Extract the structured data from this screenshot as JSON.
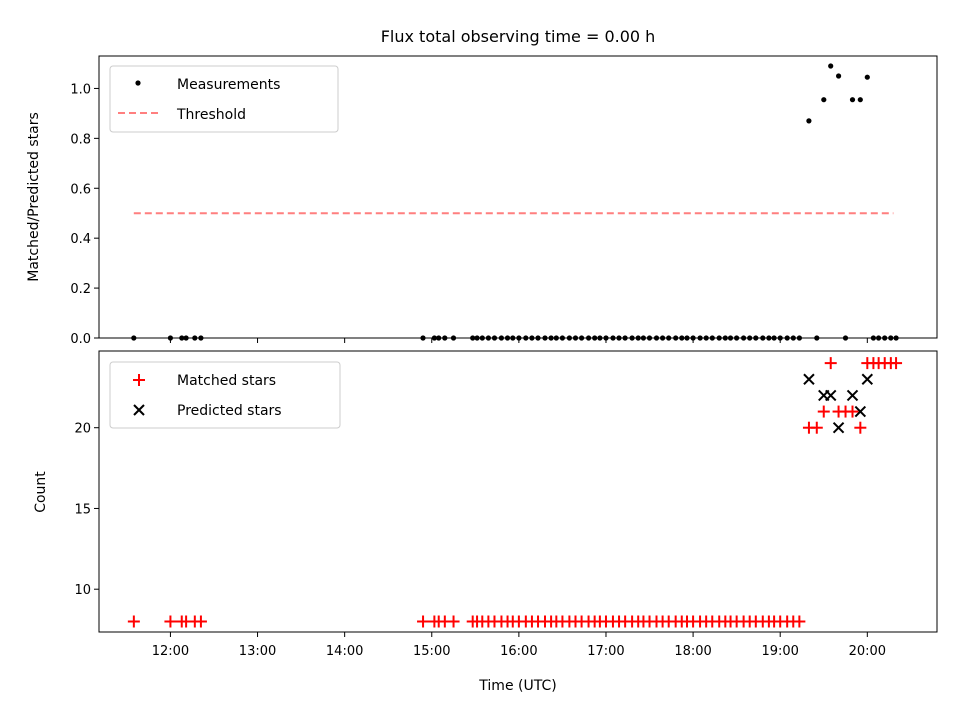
{
  "chart_data": [
    {
      "type": "scatter",
      "title": "Flux total observing time = 0.00 h",
      "xlabel": "",
      "ylabel": "Matched/Predicted stars",
      "xlim": [
        11.18,
        20.8
      ],
      "ylim": [
        0.0,
        1.13
      ],
      "yticks": [
        0.0,
        0.2,
        0.4,
        0.6,
        0.8,
        1.0
      ],
      "ytick_labels": [
        "0.0",
        "0.2",
        "0.4",
        "0.6",
        "0.8",
        "1.0"
      ],
      "legend_position": "upper-left",
      "threshold": {
        "name": "Threshold",
        "value": 0.5,
        "x_range": [
          11.58,
          20.3
        ],
        "color": "#ff7f7f"
      },
      "series": [
        {
          "name": "Measurements",
          "color": "#000000",
          "points": [
            [
              11.58,
              0
            ],
            [
              12.0,
              0
            ],
            [
              12.13,
              0
            ],
            [
              12.18,
              0
            ],
            [
              12.28,
              0
            ],
            [
              12.35,
              0
            ],
            [
              14.9,
              0
            ],
            [
              15.03,
              0
            ],
            [
              15.08,
              0
            ],
            [
              15.15,
              0
            ],
            [
              15.25,
              0
            ],
            [
              15.47,
              0
            ],
            [
              15.52,
              0
            ],
            [
              15.58,
              0
            ],
            [
              15.65,
              0
            ],
            [
              15.72,
              0
            ],
            [
              15.8,
              0
            ],
            [
              15.87,
              0
            ],
            [
              15.93,
              0
            ],
            [
              16.0,
              0
            ],
            [
              16.08,
              0
            ],
            [
              16.15,
              0
            ],
            [
              16.22,
              0
            ],
            [
              16.3,
              0
            ],
            [
              16.37,
              0
            ],
            [
              16.43,
              0
            ],
            [
              16.5,
              0
            ],
            [
              16.58,
              0
            ],
            [
              16.65,
              0
            ],
            [
              16.72,
              0
            ],
            [
              16.8,
              0
            ],
            [
              16.87,
              0
            ],
            [
              16.93,
              0
            ],
            [
              17.0,
              0
            ],
            [
              17.08,
              0
            ],
            [
              17.15,
              0
            ],
            [
              17.22,
              0
            ],
            [
              17.3,
              0
            ],
            [
              17.37,
              0
            ],
            [
              17.43,
              0
            ],
            [
              17.5,
              0
            ],
            [
              17.58,
              0
            ],
            [
              17.65,
              0
            ],
            [
              17.72,
              0
            ],
            [
              17.8,
              0
            ],
            [
              17.87,
              0
            ],
            [
              17.93,
              0
            ],
            [
              18.0,
              0
            ],
            [
              18.08,
              0
            ],
            [
              18.15,
              0
            ],
            [
              18.22,
              0
            ],
            [
              18.3,
              0
            ],
            [
              18.37,
              0
            ],
            [
              18.43,
              0
            ],
            [
              18.5,
              0
            ],
            [
              18.58,
              0
            ],
            [
              18.65,
              0
            ],
            [
              18.72,
              0
            ],
            [
              18.8,
              0
            ],
            [
              18.87,
              0
            ],
            [
              18.93,
              0
            ],
            [
              19.0,
              0
            ],
            [
              19.08,
              0
            ],
            [
              19.15,
              0
            ],
            [
              19.22,
              0
            ],
            [
              19.33,
              0.87
            ],
            [
              19.42,
              0
            ],
            [
              19.5,
              0.955
            ],
            [
              19.58,
              1.09
            ],
            [
              19.67,
              1.05
            ],
            [
              19.75,
              0
            ],
            [
              19.83,
              0.955
            ],
            [
              19.92,
              0.955
            ],
            [
              20.0,
              1.045
            ],
            [
              20.07,
              0
            ],
            [
              20.13,
              0
            ],
            [
              20.2,
              0
            ],
            [
              20.27,
              0
            ],
            [
              20.33,
              0
            ]
          ]
        }
      ]
    },
    {
      "type": "scatter",
      "title": "",
      "xlabel": "Time (UTC)",
      "ylabel": "Count",
      "xlim": [
        11.18,
        20.8
      ],
      "ylim": [
        7.35,
        24.75
      ],
      "yticks": [
        10,
        15,
        20
      ],
      "ytick_labels": [
        "10",
        "15",
        "20"
      ],
      "xticks": [
        12,
        13,
        14,
        15,
        16,
        17,
        18,
        19,
        20
      ],
      "xtick_labels": [
        "12:00",
        "13:00",
        "14:00",
        "15:00",
        "16:00",
        "17:00",
        "18:00",
        "19:00",
        "20:00"
      ],
      "legend_position": "upper-left",
      "series": [
        {
          "name": "Matched stars",
          "color": "#ff0000",
          "marker": "plus",
          "points": [
            [
              11.58,
              8
            ],
            [
              12.0,
              8
            ],
            [
              12.13,
              8
            ],
            [
              12.18,
              8
            ],
            [
              12.28,
              8
            ],
            [
              12.35,
              8
            ],
            [
              14.9,
              8
            ],
            [
              15.03,
              8
            ],
            [
              15.08,
              8
            ],
            [
              15.15,
              8
            ],
            [
              15.25,
              8
            ],
            [
              15.47,
              8
            ],
            [
              15.52,
              8
            ],
            [
              15.58,
              8
            ],
            [
              15.65,
              8
            ],
            [
              15.72,
              8
            ],
            [
              15.8,
              8
            ],
            [
              15.87,
              8
            ],
            [
              15.93,
              8
            ],
            [
              16.0,
              8
            ],
            [
              16.08,
              8
            ],
            [
              16.15,
              8
            ],
            [
              16.22,
              8
            ],
            [
              16.3,
              8
            ],
            [
              16.37,
              8
            ],
            [
              16.43,
              8
            ],
            [
              16.5,
              8
            ],
            [
              16.58,
              8
            ],
            [
              16.65,
              8
            ],
            [
              16.72,
              8
            ],
            [
              16.8,
              8
            ],
            [
              16.87,
              8
            ],
            [
              16.93,
              8
            ],
            [
              17.0,
              8
            ],
            [
              17.08,
              8
            ],
            [
              17.15,
              8
            ],
            [
              17.22,
              8
            ],
            [
              17.3,
              8
            ],
            [
              17.37,
              8
            ],
            [
              17.43,
              8
            ],
            [
              17.5,
              8
            ],
            [
              17.58,
              8
            ],
            [
              17.65,
              8
            ],
            [
              17.72,
              8
            ],
            [
              17.8,
              8
            ],
            [
              17.87,
              8
            ],
            [
              17.93,
              8
            ],
            [
              18.0,
              8
            ],
            [
              18.08,
              8
            ],
            [
              18.15,
              8
            ],
            [
              18.22,
              8
            ],
            [
              18.3,
              8
            ],
            [
              18.37,
              8
            ],
            [
              18.43,
              8
            ],
            [
              18.5,
              8
            ],
            [
              18.58,
              8
            ],
            [
              18.65,
              8
            ],
            [
              18.72,
              8
            ],
            [
              18.8,
              8
            ],
            [
              18.87,
              8
            ],
            [
              18.93,
              8
            ],
            [
              19.0,
              8
            ],
            [
              19.08,
              8
            ],
            [
              19.15,
              8
            ],
            [
              19.22,
              8
            ],
            [
              19.33,
              20
            ],
            [
              19.42,
              20
            ],
            [
              19.5,
              21
            ],
            [
              19.58,
              24
            ],
            [
              19.67,
              21
            ],
            [
              19.75,
              21
            ],
            [
              19.83,
              21
            ],
            [
              19.92,
              20
            ],
            [
              20.0,
              24
            ],
            [
              20.07,
              24
            ],
            [
              20.13,
              24
            ],
            [
              20.2,
              24
            ],
            [
              20.27,
              24
            ],
            [
              20.33,
              24
            ]
          ]
        },
        {
          "name": "Predicted stars",
          "color": "#000000",
          "marker": "x",
          "points": [
            [
              19.33,
              23
            ],
            [
              19.5,
              22
            ],
            [
              19.58,
              22
            ],
            [
              19.67,
              20
            ],
            [
              19.83,
              22
            ],
            [
              19.92,
              21
            ],
            [
              20.0,
              23
            ]
          ]
        }
      ]
    }
  ]
}
